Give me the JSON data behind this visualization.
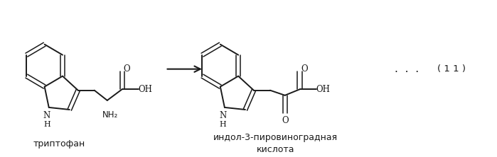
{
  "background_color": "#ffffff",
  "title": "",
  "label_tryptophan": "триптофан",
  "label_indole": "индол-3-пировиноградная\nкислота",
  "label_equation": "( 1 1 )",
  "dots": ".  .  .",
  "figsize": [
    6.99,
    2.22
  ],
  "dpi": 100,
  "line_color": "#1a1a1a",
  "line_width": 1.4,
  "font_size": 9,
  "arrow_color": "#1a1a1a"
}
